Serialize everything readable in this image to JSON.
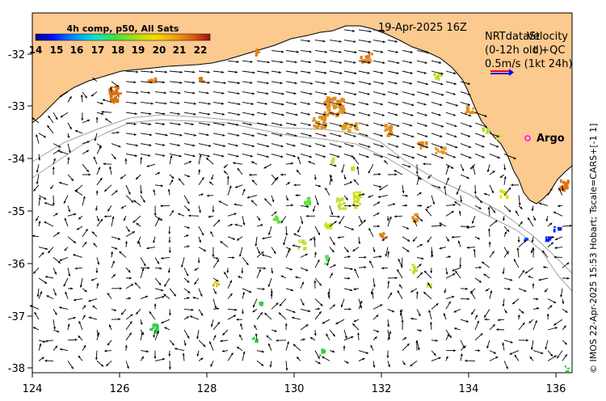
{
  "map": {
    "date_label": "19-Apr-2025 16Z",
    "colorbar": {
      "title": "4h comp, p50, All Sats",
      "ticks": [
        "14",
        "15",
        "16",
        "17",
        "18",
        "19",
        "20",
        "21",
        "22"
      ],
      "min": 14,
      "max": 22.5
    },
    "velocity_legend": {
      "line1_a": "NRTdataSt",
      "line1_b": "Velocity",
      "line2_a": "(0-12h old)",
      "line2_b": "t +QC",
      "line3": "0.5m/s (1kt 24h)"
    },
    "argo_label": "Argo",
    "credit": "© IMOS 22-Apr-2025 15:53 Hobart; Tscale=CARS+[-1 1]",
    "lat_ticks": [
      "-32",
      "-33",
      "-34",
      "-35",
      "-36",
      "-37",
      "-38"
    ],
    "lon_ticks": [
      "124",
      "126",
      "128",
      "130",
      "132",
      "134",
      "136"
    ],
    "colors": {
      "land": "#FCC98F",
      "ocean": "#FFFFFF",
      "coast": "#000000",
      "isobath": "#A0A0A0",
      "argo_marker": "#FF00FF",
      "legend_red": "#FF0000",
      "legend_blue": "#0000FF"
    }
  }
}
